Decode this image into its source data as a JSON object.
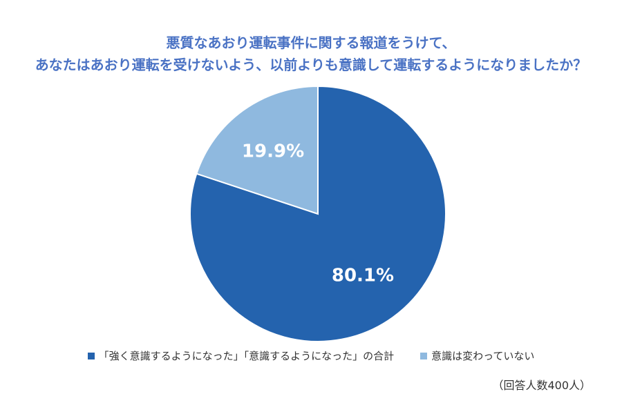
{
  "chart_data": {
    "type": "pie",
    "title_lines": [
      "悪質なあおり運転事件に関する報道をうけて、",
      "あなたはあおり運転を受けないよう、以前よりも意識して運転するようになりましたか？"
    ],
    "slices": [
      {
        "label": "「強く意識するようになった」「意識するようになった」の合計",
        "value": 80.1,
        "value_label": "80.1%",
        "color": "#2463ae"
      },
      {
        "label": "意識は変わっていない",
        "value": 19.9,
        "value_label": "19.9%",
        "color": "#8fb9df"
      }
    ],
    "start": "12 o'clock",
    "direction": "clockwise",
    "legend_position": "bottom",
    "note": "（回答人数400人）"
  }
}
